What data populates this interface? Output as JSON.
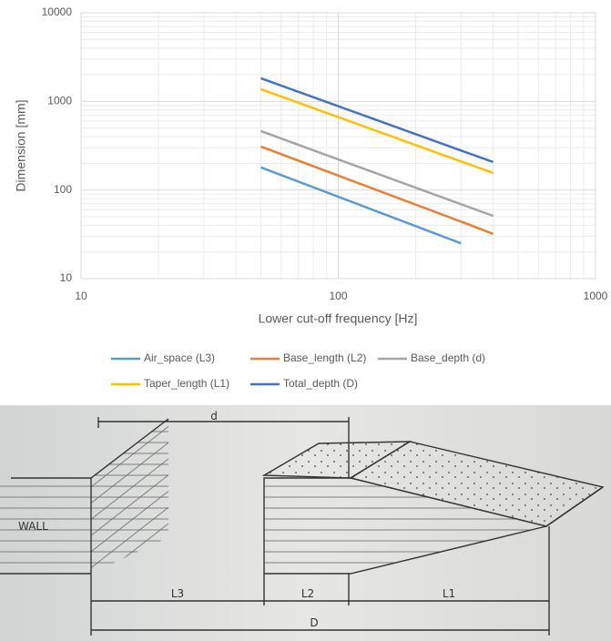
{
  "chart_data": {
    "type": "line",
    "x_label": "Lower cut-off frequency [Hz]",
    "y_label": "Dimension [mm]",
    "x": [
      50,
      300,
      400
    ],
    "series": [
      {
        "name": "Air_space (L3)",
        "color": "#5b9bd5",
        "values": [
          180,
          25,
          null
        ]
      },
      {
        "name": "Base_length (L2)",
        "color": "#ed7d31",
        "values": [
          309,
          44,
          32
        ]
      },
      {
        "name": "Base_depth (d)",
        "color": "#a5a5a5",
        "values": [
          462,
          69,
          51
        ]
      },
      {
        "name": "Taper_length (L1)",
        "color": "#ffc000",
        "values": [
          1374,
          210,
          156
        ]
      },
      {
        "name": "Total_depth (D)",
        "color": "#4472c4",
        "values": [
          1824,
          279,
          207
        ]
      }
    ],
    "xlim": [
      10,
      1000
    ],
    "ylim": [
      10,
      10000
    ],
    "xticks": [
      10,
      100,
      1000
    ],
    "yticks": [
      10,
      100,
      1000,
      10000
    ],
    "x_log": true,
    "y_log": true,
    "grid": true,
    "minor_grid": true,
    "legend": "bottom"
  },
  "diagram": {
    "labels": {
      "depth": "d",
      "wall": "WALL",
      "l3": "L3",
      "l2": "L2",
      "l1": "L1",
      "total": "D"
    }
  }
}
